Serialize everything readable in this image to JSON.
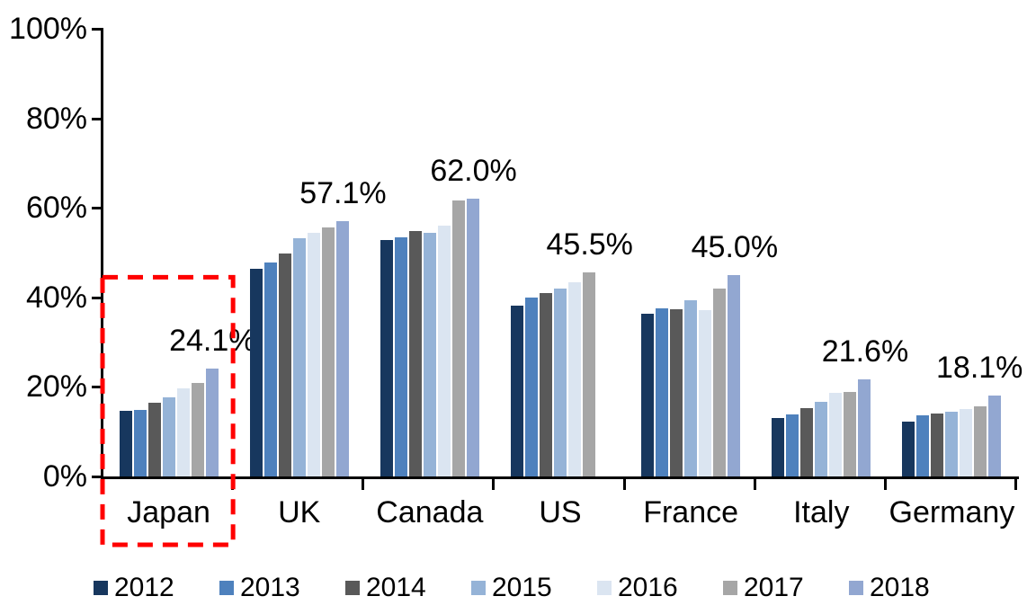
{
  "chart_data": {
    "type": "bar",
    "title": "",
    "xlabel": "",
    "ylabel": "",
    "categories": [
      "Japan",
      "UK",
      "Canada",
      "US",
      "France",
      "Italy",
      "Germany"
    ],
    "series": [
      {
        "name": "2012",
        "color": "#17375E",
        "values": [
          14.7,
          46.3,
          52.9,
          38.1,
          36.3,
          13.0,
          12.2
        ]
      },
      {
        "name": "2013",
        "color": "#4E81BD",
        "values": [
          14.8,
          47.7,
          53.4,
          40.0,
          37.6,
          13.9,
          13.7
        ]
      },
      {
        "name": "2014",
        "color": "#595959",
        "values": [
          16.4,
          49.8,
          54.8,
          41.0,
          37.4,
          15.2,
          14.0
        ]
      },
      {
        "name": "2015",
        "color": "#95B3D7",
        "values": [
          17.7,
          53.2,
          54.5,
          41.9,
          39.3,
          16.6,
          14.5
        ]
      },
      {
        "name": "2016",
        "color": "#DBE5F1",
        "values": [
          19.6,
          54.5,
          56.0,
          43.4,
          37.2,
          18.6,
          15.0
        ]
      },
      {
        "name": "2017",
        "color": "#A6A6A6",
        "values": [
          20.9,
          55.6,
          61.6,
          45.5,
          42.0,
          18.8,
          15.6
        ]
      },
      {
        "name": "2018",
        "color": "#92A7D1",
        "values": [
          24.1,
          57.1,
          62.0,
          null,
          45.0,
          21.6,
          18.1
        ]
      }
    ],
    "data_labels": {
      "Japan": "24.1%",
      "UK": "57.1%",
      "Canada": "62.0%",
      "US": "45.5%",
      "France": "45.0%",
      "Italy": "21.6%",
      "Germany": "18.1%"
    },
    "y_axis": {
      "min": 0,
      "max": 100,
      "tick_labels": [
        "0%",
        "20%",
        "40%",
        "60%",
        "80%",
        "100%"
      ],
      "tick_values": [
        0,
        20,
        40,
        60,
        80,
        100
      ]
    },
    "grid": "off",
    "legend_position": "bottom",
    "annotation": {
      "shape": "dashed-rectangle",
      "color": "#FF0000",
      "target_category": "Japan",
      "top_value_pct": 44.5
    }
  }
}
